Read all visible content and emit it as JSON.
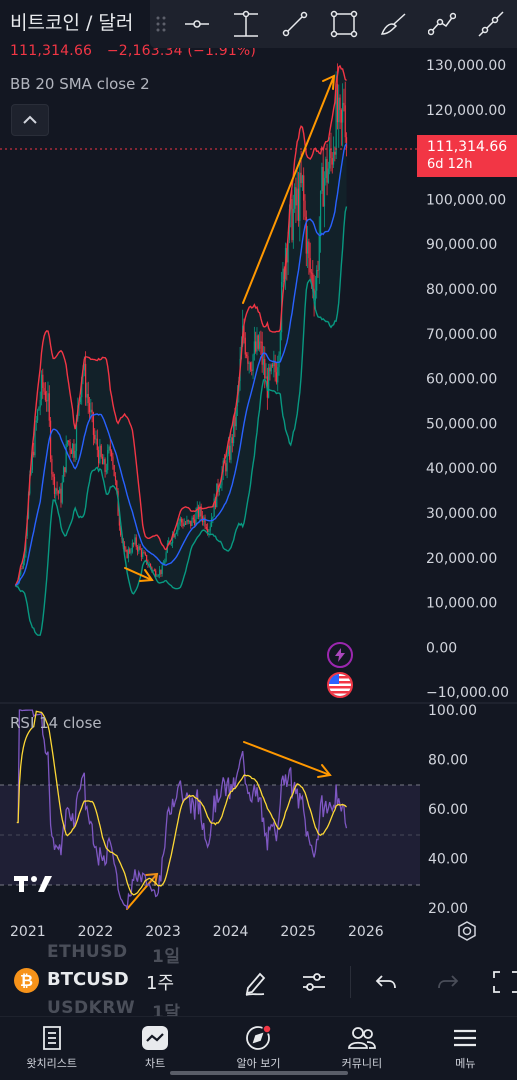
{
  "header": {
    "symbol_title": "비트코인 / 달러",
    "last_price": "111,314.66",
    "change": "−2,163.34",
    "change_pct": "(−1.91%)"
  },
  "drawing_tools": [
    {
      "name": "horizontal-ray-icon"
    },
    {
      "name": "vertical-line-icon"
    },
    {
      "name": "trend-line-icon"
    },
    {
      "name": "rectangle-icon"
    },
    {
      "name": "brush-icon"
    },
    {
      "name": "path-icon"
    },
    {
      "name": "ray-icon"
    }
  ],
  "indicators": {
    "main": "BB 20 SMA close 2",
    "rsi": "RSI 14 close"
  },
  "price_scale": [
    "130,000.00",
    "120,000.00",
    "110,000.00",
    "100,000.00",
    "90,000.00",
    "80,000.00",
    "70,000.00",
    "60,000.00",
    "50,000.00",
    "40,000.00",
    "30,000.00",
    "20,000.00",
    "10,000.00",
    "0.00",
    "−10,000.00"
  ],
  "price_tag": {
    "price": "111,314.66",
    "countdown": "6d 12h"
  },
  "rsi_scale": [
    "100.00",
    "80.00",
    "60.00",
    "40.00",
    "20.00"
  ],
  "time_axis": [
    "2021",
    "2022",
    "2023",
    "2024",
    "2025",
    "2026"
  ],
  "symbol_bar": {
    "symbol": "BTCUSD",
    "timeframe": "1주",
    "ghost_above_symbol": "ETHUSD",
    "ghost_above_tf": "1일",
    "ghost_below_symbol": "USDKRW",
    "ghost_below_tf": "1달"
  },
  "bottom_nav": [
    {
      "label": "왓치리스트",
      "icon": "watchlist-icon"
    },
    {
      "label": "차트",
      "icon": "chart-icon"
    },
    {
      "label": "알아 보기",
      "icon": "explore-compass-icon"
    },
    {
      "label": "커뮤니티",
      "icon": "community-icon"
    },
    {
      "label": "메뉴",
      "icon": "hamburger-menu-icon"
    }
  ],
  "colors": {
    "background": "#131722",
    "down": "#f23645",
    "up": "#089981",
    "bb_upper": "#f23645",
    "bb_basis": "#2962ff",
    "bb_lower": "#089981",
    "rsi_line": "#7e57c2",
    "rsi_ma": "#fdd835",
    "annotation": "#ff9800"
  }
}
